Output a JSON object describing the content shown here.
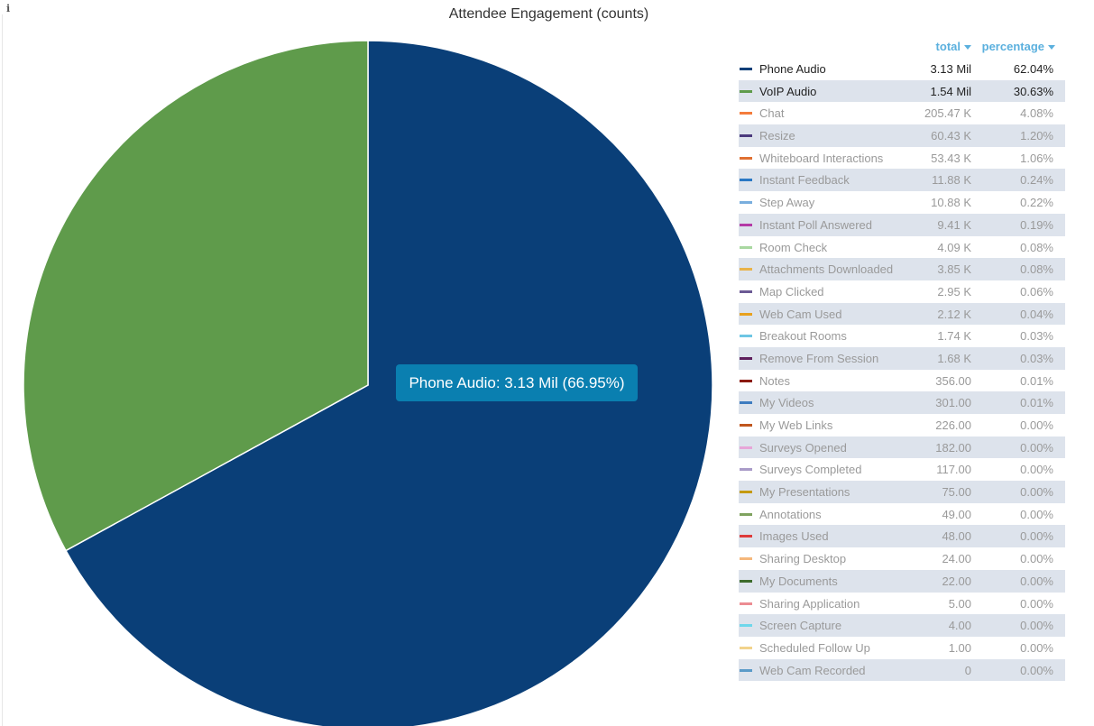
{
  "chart_data": {
    "type": "pie",
    "title": "Attendee Engagement (counts)",
    "visible_slices": [
      "Phone Audio",
      "VoIP Audio"
    ],
    "tooltip": "Phone Audio: 3.13 Mil (66.95%)",
    "legend_columns": [
      "total",
      "percentage"
    ],
    "series": [
      {
        "name": "Phone Audio",
        "value": 3130000,
        "total": "3.13 Mil",
        "percentage": "62.04%",
        "color": "#0a3f78",
        "active": true
      },
      {
        "name": "VoIP Audio",
        "value": 1540000,
        "total": "1.54 Mil",
        "percentage": "30.63%",
        "color": "#5f9b4b",
        "active": true
      },
      {
        "name": "Chat",
        "value": 205470,
        "total": "205.47 K",
        "percentage": "4.08%",
        "color": "#f47c3c",
        "active": false
      },
      {
        "name": "Resize",
        "value": 60430,
        "total": "60.43 K",
        "percentage": "1.20%",
        "color": "#4b3a7d",
        "active": false
      },
      {
        "name": "Whiteboard Interactions",
        "value": 53430,
        "total": "53.43 K",
        "percentage": "1.06%",
        "color": "#e07032",
        "active": false
      },
      {
        "name": "Instant Feedback",
        "value": 11880,
        "total": "11.88 K",
        "percentage": "0.24%",
        "color": "#2a78c4",
        "active": false
      },
      {
        "name": "Step Away",
        "value": 10880,
        "total": "10.88 K",
        "percentage": "0.22%",
        "color": "#79aede",
        "active": false
      },
      {
        "name": "Instant Poll Answered",
        "value": 9410,
        "total": "9.41 K",
        "percentage": "0.19%",
        "color": "#b43aa6",
        "active": false
      },
      {
        "name": "Room Check",
        "value": 4090,
        "total": "4.09 K",
        "percentage": "0.08%",
        "color": "#a9d8a1",
        "active": false
      },
      {
        "name": "Attachments Downloaded",
        "value": 3850,
        "total": "3.85 K",
        "percentage": "0.08%",
        "color": "#e9b34a",
        "active": false
      },
      {
        "name": "Map Clicked",
        "value": 2950,
        "total": "2.95 K",
        "percentage": "0.06%",
        "color": "#6b5a94",
        "active": false
      },
      {
        "name": "Web Cam Used",
        "value": 2120,
        "total": "2.12 K",
        "percentage": "0.04%",
        "color": "#e8a11e",
        "active": false
      },
      {
        "name": "Breakout Rooms",
        "value": 1740,
        "total": "1.74 K",
        "percentage": "0.03%",
        "color": "#6ec6e4",
        "active": false
      },
      {
        "name": "Remove From Session",
        "value": 1680,
        "total": "1.68 K",
        "percentage": "0.03%",
        "color": "#5e1f5c",
        "active": false
      },
      {
        "name": "Notes",
        "value": 356,
        "total": "356.00",
        "percentage": "0.01%",
        "color": "#8b1a10",
        "active": false
      },
      {
        "name": "My Videos",
        "value": 301,
        "total": "301.00",
        "percentage": "0.01%",
        "color": "#3e7cc0",
        "active": false
      },
      {
        "name": "My Web Links",
        "value": 226,
        "total": "226.00",
        "percentage": "0.00%",
        "color": "#c0561e",
        "active": false
      },
      {
        "name": "Surveys Opened",
        "value": 182,
        "total": "182.00",
        "percentage": "0.00%",
        "color": "#e7a6d8",
        "active": false
      },
      {
        "name": "Surveys Completed",
        "value": 117,
        "total": "117.00",
        "percentage": "0.00%",
        "color": "#a99bc8",
        "active": false
      },
      {
        "name": "My Presentations",
        "value": 75,
        "total": "75.00",
        "percentage": "0.00%",
        "color": "#c59a10",
        "active": false
      },
      {
        "name": "Annotations",
        "value": 49,
        "total": "49.00",
        "percentage": "0.00%",
        "color": "#7fa360",
        "active": false
      },
      {
        "name": "Images Used",
        "value": 48,
        "total": "48.00",
        "percentage": "0.00%",
        "color": "#de3b3b",
        "active": false
      },
      {
        "name": "Sharing Desktop",
        "value": 24,
        "total": "24.00",
        "percentage": "0.00%",
        "color": "#f5b77c",
        "active": false
      },
      {
        "name": "My Documents",
        "value": 22,
        "total": "22.00",
        "percentage": "0.00%",
        "color": "#3d6b2c",
        "active": false
      },
      {
        "name": "Sharing Application",
        "value": 5,
        "total": "5.00",
        "percentage": "0.00%",
        "color": "#ec8c92",
        "active": false
      },
      {
        "name": "Screen Capture",
        "value": 4,
        "total": "4.00",
        "percentage": "0.00%",
        "color": "#6ed7eb",
        "active": false
      },
      {
        "name": "Scheduled Follow Up",
        "value": 1,
        "total": "1.00",
        "percentage": "0.00%",
        "color": "#f2d38c",
        "active": false
      },
      {
        "name": "Web Cam Recorded",
        "value": 0,
        "total": "0",
        "percentage": "0.00%",
        "color": "#5b9bc8",
        "active": false
      }
    ]
  }
}
